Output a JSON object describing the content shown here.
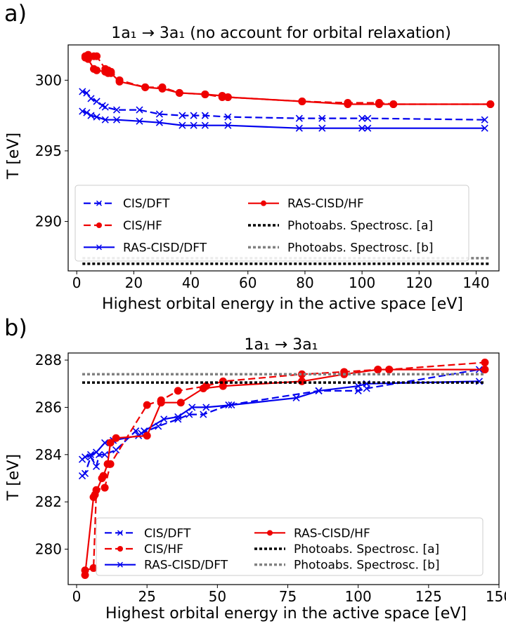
{
  "chart_data": [
    {
      "panel": "a)",
      "type": "line",
      "title": "1a₁ → 3a₁ (no account for orbital relaxation)",
      "xlabel": "Highest orbital energy in the active space [eV]",
      "ylabel": "T [eV]",
      "xlim": [
        -3,
        148
      ],
      "ylim": [
        286.5,
        302.5
      ],
      "xticks": [
        "0",
        "20",
        "40",
        "60",
        "80",
        "100",
        "120",
        "140"
      ],
      "yticks": [
        "290",
        "295",
        "300"
      ],
      "legend_position": "lower-left",
      "series": [
        {
          "name": "CIS/DFT",
          "color": "#0000ee",
          "style": "dashed",
          "marker": "x",
          "x": [
            2,
            3.5,
            5,
            7,
            9,
            10,
            14,
            22,
            29,
            37,
            41,
            45,
            53,
            78,
            86,
            100,
            102,
            143
          ],
          "y": [
            299.2,
            299.1,
            298.7,
            298.5,
            298.2,
            298.1,
            297.9,
            297.9,
            297.6,
            297.5,
            297.5,
            297.5,
            297.4,
            297.3,
            297.3,
            297.3,
            297.3,
            297.2
          ]
        },
        {
          "name": "CIS/HF",
          "color": "#ee0000",
          "style": "dashed",
          "marker": "o",
          "x": [
            3,
            4,
            6,
            7,
            10,
            11,
            12,
            15,
            24,
            30,
            36,
            45,
            51,
            53,
            79,
            95,
            106,
            111,
            145
          ],
          "y": [
            301.7,
            301.8,
            301.7,
            301.7,
            300.8,
            300.7,
            300.6,
            300.0,
            299.5,
            299.5,
            299.1,
            299.0,
            298.8,
            298.8,
            298.5,
            298.4,
            298.4,
            298.3,
            298.3
          ]
        },
        {
          "name": "RAS-CISD/DFT",
          "color": "#0000ee",
          "style": "solid",
          "marker": "x",
          "x": [
            2,
            3.5,
            5,
            7,
            10,
            14,
            22,
            29,
            37,
            41,
            45,
            53,
            78,
            86,
            100,
            102,
            143
          ],
          "y": [
            297.8,
            297.7,
            297.5,
            297.4,
            297.2,
            297.2,
            297.1,
            297.0,
            296.8,
            296.8,
            296.8,
            296.8,
            296.6,
            296.6,
            296.6,
            296.6,
            296.6
          ]
        },
        {
          "name": "RAS-CISD/HF",
          "color": "#ee0000",
          "style": "solid",
          "marker": "o",
          "x": [
            3,
            4,
            6,
            7,
            10,
            11,
            12,
            15,
            24,
            30,
            36,
            45,
            51,
            53,
            79,
            95,
            106,
            111,
            145
          ],
          "y": [
            301.6,
            301.5,
            300.8,
            300.7,
            300.6,
            300.5,
            300.5,
            299.9,
            299.5,
            299.4,
            299.1,
            299.0,
            298.9,
            298.8,
            298.5,
            298.3,
            298.3,
            298.3,
            298.3
          ]
        },
        {
          "name": "Photoabs. Spectrosc. [a]",
          "color": "#000000",
          "style": "dotted",
          "x": [
            2,
            145
          ],
          "y": [
            287.0,
            287.0
          ]
        },
        {
          "name": "Photoabs. Spectrosc. [b]",
          "color": "#808080",
          "style": "dotted",
          "x": [
            2,
            145
          ],
          "y": [
            287.4,
            287.4
          ]
        }
      ]
    },
    {
      "panel": "b)",
      "type": "line",
      "title": "1a₁ → 3a₁",
      "xlabel": "Highest orbital energy in the active space [eV]",
      "ylabel": "T [eV]",
      "xlim": [
        -3,
        150
      ],
      "ylim": [
        278.5,
        288.3
      ],
      "xticks": [
        "0",
        "25",
        "50",
        "75",
        "100",
        "125",
        "150"
      ],
      "yticks": [
        "280",
        "282",
        "284",
        "286",
        "288"
      ],
      "legend_position": "lower-right",
      "series": [
        {
          "name": "CIS/DFT",
          "color": "#0000ee",
          "style": "dashed",
          "marker": "x",
          "x": [
            2,
            3,
            5,
            7,
            8,
            10,
            14,
            21,
            23,
            29,
            36,
            40,
            45,
            54,
            86,
            100,
            103,
            143
          ],
          "y": [
            283.1,
            283.2,
            283.9,
            283.5,
            284.0,
            284.0,
            284.2,
            285.0,
            284.9,
            285.2,
            285.5,
            285.7,
            285.7,
            286.1,
            286.7,
            286.7,
            286.8,
            287.6
          ]
        },
        {
          "name": "CIS/HF",
          "color": "#ee0000",
          "style": "dashed",
          "marker": "o",
          "x": [
            3,
            6,
            7,
            10,
            12,
            25,
            30,
            36,
            46,
            52,
            80,
            95,
            107,
            111,
            145
          ],
          "y": [
            279.1,
            279.2,
            282.5,
            282.6,
            283.6,
            286.1,
            286.3,
            286.7,
            286.9,
            287.1,
            287.4,
            287.5,
            287.6,
            287.6,
            287.9
          ]
        },
        {
          "name": "RAS-CISD/DFT",
          "color": "#0000ee",
          "style": "solid",
          "marker": "x",
          "x": [
            2,
            3,
            5,
            7,
            10,
            13,
            22,
            24,
            31,
            36,
            41,
            46,
            55,
            78,
            86,
            100,
            103,
            143
          ],
          "y": [
            283.8,
            283.9,
            284.0,
            284.1,
            284.5,
            284.6,
            284.8,
            285.0,
            285.5,
            285.6,
            286.0,
            286.0,
            286.1,
            286.4,
            286.7,
            286.9,
            287.0,
            287.1
          ]
        },
        {
          "name": "RAS-CISD/HF",
          "color": "#ee0000",
          "style": "solid",
          "marker": "o",
          "x": [
            3,
            6,
            6.5,
            9,
            9.5,
            11,
            12,
            14,
            25,
            30,
            37,
            45,
            52,
            80,
            95,
            107,
            111,
            145
          ],
          "y": [
            278.9,
            282.2,
            282.3,
            283.0,
            283.1,
            283.6,
            284.5,
            284.7,
            284.8,
            286.2,
            286.2,
            286.8,
            286.9,
            287.1,
            287.4,
            287.6,
            287.6,
            287.6
          ]
        },
        {
          "name": "Photoabs. Spectrosc. [a]",
          "color": "#000000",
          "style": "dotted",
          "x": [
            2,
            145
          ],
          "y": [
            287.05,
            287.05
          ]
        },
        {
          "name": "Photoabs. Spectrosc. [b]",
          "color": "#808080",
          "style": "dotted",
          "x": [
            2,
            145
          ],
          "y": [
            287.4,
            287.4
          ]
        }
      ]
    }
  ]
}
